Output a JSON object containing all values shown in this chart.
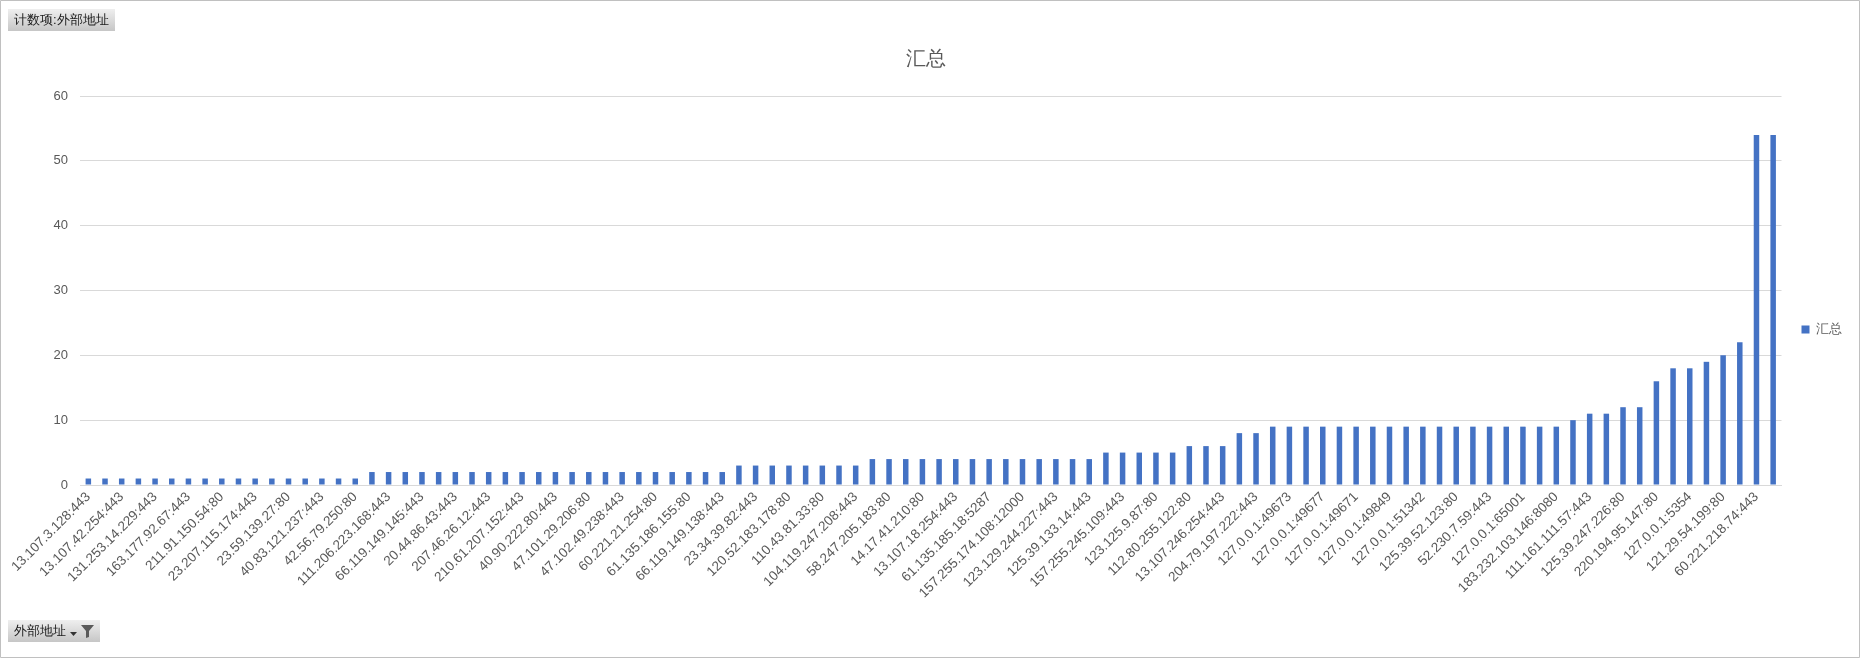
{
  "chart_data": {
    "type": "bar",
    "title": "汇总",
    "categories": [
      "13.107.3.128:443",
      null,
      "13.107.42.254:443",
      null,
      "131.253.14.229:443",
      null,
      "163.177.92.67:443",
      null,
      "211.91.150.54:80",
      null,
      "23.207.115.174:443",
      null,
      "23.59.139.27:80",
      null,
      "40.83.121.237:443",
      null,
      "42.56.79.250:80",
      null,
      "111.206.223.168:443",
      null,
      "66.119.149.145:443",
      null,
      "20.44.86.43:443",
      null,
      "207.46.26.12:443",
      null,
      "210.61.207.152:443",
      null,
      "40.90.222.80:443",
      null,
      "47.101.29.206:80",
      null,
      "47.102.49.238:443",
      null,
      "60.221.21.254:80",
      null,
      "61.135.186.155:80",
      null,
      "66.119.149.138:443",
      null,
      "23.34.39.82:443",
      null,
      "120.52.183.178:80",
      null,
      "110.43.81.33:80",
      null,
      "104.119.247.208:443",
      null,
      "58.247.205.183:80",
      null,
      "14.17.41.210:80",
      null,
      "13.107.18.254:443",
      null,
      "61.135.185.18:5287",
      null,
      "157.255.174.108:12000",
      null,
      "123.129.244.227:443",
      null,
      "125.39.133.14:443",
      null,
      "157.255.245.109:443",
      null,
      "123.125.9.87:80",
      null,
      "112.80.255.122:80",
      null,
      "13.107.246.254:443",
      null,
      "204.79.197.222:443",
      null,
      "127.0.0.1:49673",
      null,
      "127.0.0.1:49677",
      null,
      "127.0.0.1:49671",
      null,
      "127.0.0.1:49849",
      null,
      "127.0.0.1:51342",
      null,
      "125.39.52.123:80",
      null,
      "52.230.7.59:443",
      null,
      "127.0.0.1:65001",
      null,
      "183.232.103.146:8080",
      null,
      "111.161.111.57:443",
      null,
      "125.39.247.226:80",
      null,
      "220.194.95.147:80",
      null,
      "127.0.0.1:5354",
      null,
      "121.29.54.199:80",
      null,
      "60.221.218.74:443",
      null
    ],
    "series": [
      {
        "name": "汇总",
        "color": "#4472c4",
        "values": [
          1,
          1,
          1,
          1,
          1,
          1,
          1,
          1,
          1,
          1,
          1,
          1,
          1,
          1,
          1,
          1,
          1,
          2,
          2,
          2,
          2,
          2,
          2,
          2,
          2,
          2,
          2,
          2,
          2,
          2,
          2,
          2,
          2,
          2,
          2,
          2,
          2,
          2,
          2,
          3,
          3,
          3,
          3,
          3,
          3,
          3,
          3,
          4,
          4,
          4,
          4,
          4,
          4,
          4,
          4,
          4,
          4,
          4,
          4,
          4,
          4,
          5,
          5,
          5,
          5,
          5,
          6,
          6,
          6,
          8,
          8,
          9,
          9,
          9,
          9,
          9,
          9,
          9,
          9,
          9,
          9,
          9,
          9,
          9,
          9,
          9,
          9,
          9,
          9,
          10,
          11,
          11,
          12,
          12,
          16,
          18,
          18,
          19,
          20,
          22,
          54,
          54
        ]
      }
    ],
    "ylim": [
      0,
      60
    ],
    "yticks": [
      0,
      10,
      20,
      30,
      40,
      50,
      60
    ],
    "grid": "y",
    "legend": "right",
    "annotations": [
      "计数项:外部地址",
      "外部地址"
    ]
  }
}
